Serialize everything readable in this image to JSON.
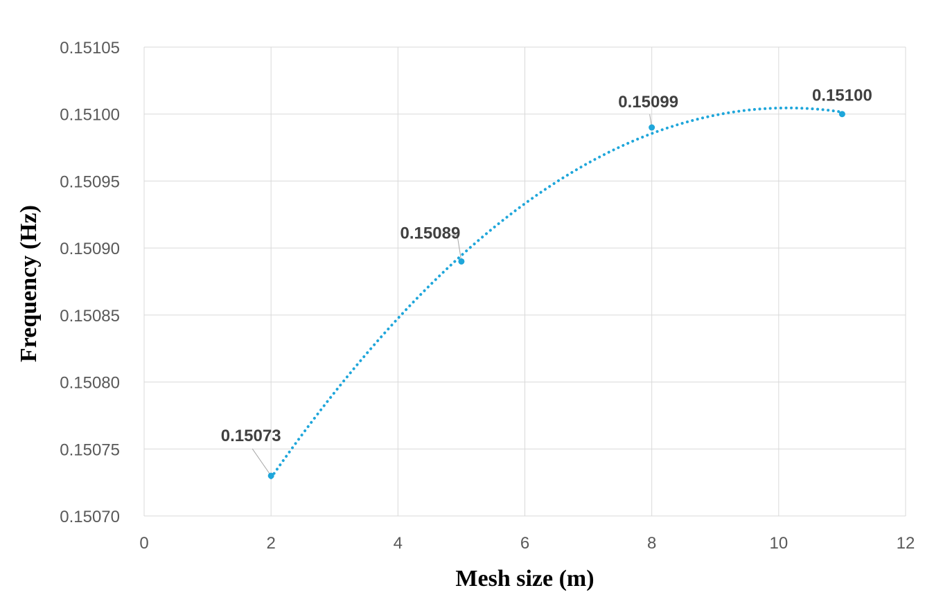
{
  "chart_data": {
    "type": "scatter",
    "title": "",
    "xlabel": "Mesh size (m)",
    "ylabel": "Frequency (Hz)",
    "xlim": [
      0,
      12
    ],
    "ylim": [
      0.1507,
      0.15105
    ],
    "x_ticks": [
      "0",
      "2",
      "4",
      "6",
      "8",
      "10",
      "12"
    ],
    "y_ticks": [
      "0.15070",
      "0.15075",
      "0.15080",
      "0.15085",
      "0.15090",
      "0.15095",
      "0.15100",
      "0.15105"
    ],
    "grid": true,
    "legend": "none",
    "series": [
      {
        "x": [
          2,
          5,
          8,
          11
        ],
        "y": [
          0.15073,
          0.15089,
          0.15099,
          0.151
        ],
        "labels": [
          "0.15073",
          "0.15089",
          "0.15099",
          "0.15100"
        ],
        "color": "#1FA6DA",
        "trendline": "polynomial-order-2"
      }
    ]
  }
}
